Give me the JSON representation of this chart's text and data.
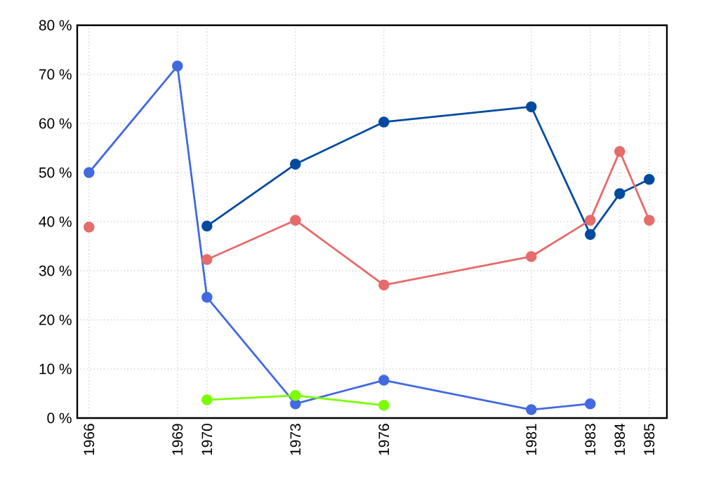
{
  "chart_data": {
    "type": "line",
    "x": [
      1966,
      1969,
      1970,
      1973,
      1976,
      1981,
      1983,
      1984,
      1985
    ],
    "series": [
      {
        "color": "#4169e1",
        "values": [
          50,
          71.7,
          24.6,
          2.9,
          7.7,
          1.7,
          2.9,
          null,
          null
        ]
      },
      {
        "color": "#004a9f",
        "values": [
          null,
          null,
          39.1,
          51.7,
          60.3,
          63.4,
          37.4,
          45.7,
          48.6
        ]
      },
      {
        "color": "#e66b6b",
        "values": [
          38.9,
          null,
          32.3,
          40.3,
          27.1,
          32.9,
          40.3,
          54.3,
          40.3
        ]
      },
      {
        "color": "#7cfc00",
        "values": [
          null,
          null,
          3.7,
          4.6,
          2.6,
          null,
          null,
          null,
          null
        ]
      }
    ],
    "xlim": [
      1965.6,
      1985.6
    ],
    "ylim": [
      0,
      80
    ],
    "xticks": [
      1966,
      1969,
      1970,
      1973,
      1976,
      1981,
      1983,
      1984,
      1985
    ],
    "yticks": [
      {
        "value": 0,
        "label": "0 %"
      },
      {
        "value": 10,
        "label": "10 %"
      },
      {
        "value": 20,
        "label": "20 %"
      },
      {
        "value": 30,
        "label": "30 %"
      },
      {
        "value": 40,
        "label": "40 %"
      },
      {
        "value": 50,
        "label": "50 %"
      },
      {
        "value": 60,
        "label": "60 %"
      },
      {
        "value": 70,
        "label": "70 %"
      },
      {
        "value": 80,
        "label": "80 %"
      }
    ],
    "grid": true,
    "marker": "circle",
    "line_style": "solid"
  }
}
